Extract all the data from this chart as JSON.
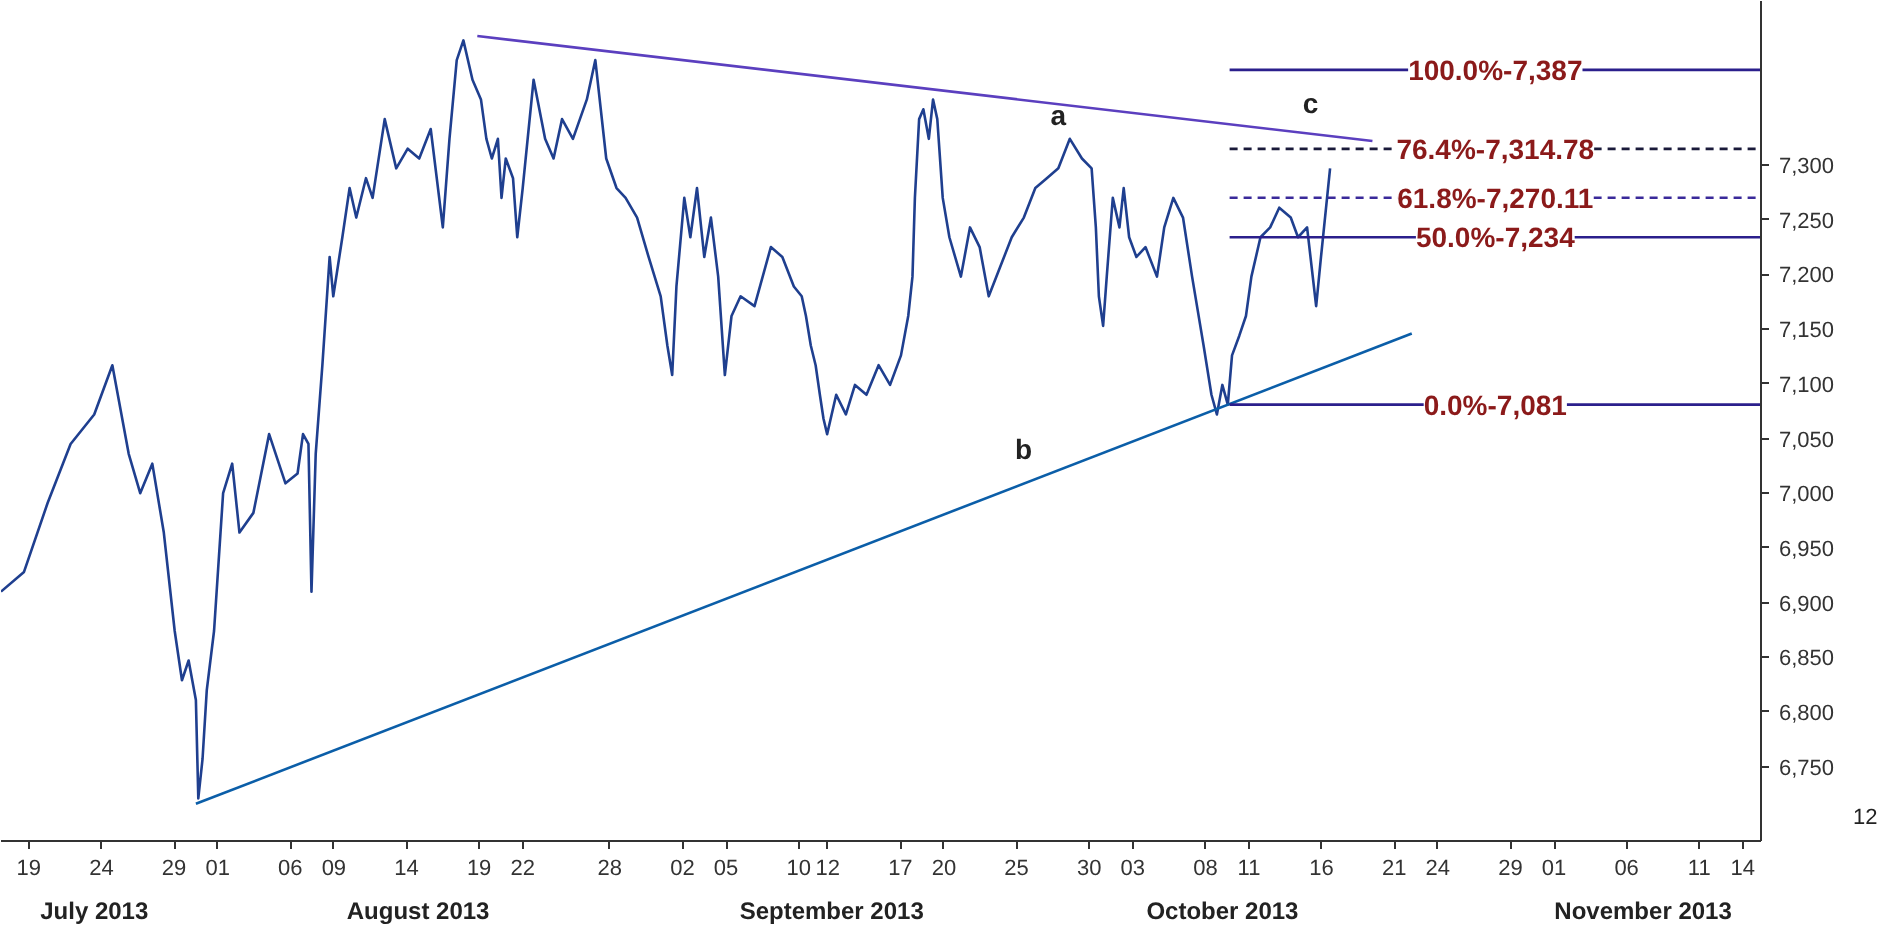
{
  "chart_data": {
    "type": "line",
    "xlim": [
      "2013-07-17T02:00",
      "2013-11-15T06:00"
    ],
    "ylim": [
      6682,
      7450
    ],
    "xticks": [
      {
        "value": "2013-07-19",
        "label": "19"
      },
      {
        "value": "2013-07-24",
        "label": "24"
      },
      {
        "value": "2013-07-29",
        "label": "29"
      },
      {
        "value": "2013-08-01",
        "label": "01"
      },
      {
        "value": "2013-08-06",
        "label": "06"
      },
      {
        "value": "2013-08-09",
        "label": "09"
      },
      {
        "value": "2013-08-14",
        "label": "14"
      },
      {
        "value": "2013-08-19",
        "label": "19"
      },
      {
        "value": "2013-08-22",
        "label": "22"
      },
      {
        "value": "2013-08-28",
        "label": "28"
      },
      {
        "value": "2013-09-02",
        "label": "02"
      },
      {
        "value": "2013-09-05",
        "label": "05"
      },
      {
        "value": "2013-09-10",
        "label": "10"
      },
      {
        "value": "2013-09-12",
        "label": "12"
      },
      {
        "value": "2013-09-17",
        "label": "17"
      },
      {
        "value": "2013-09-20",
        "label": "20"
      },
      {
        "value": "2013-09-25",
        "label": "25"
      },
      {
        "value": "2013-09-30",
        "label": "30"
      },
      {
        "value": "2013-10-03",
        "label": "03"
      },
      {
        "value": "2013-10-08",
        "label": "08"
      },
      {
        "value": "2013-10-11",
        "label": "11"
      },
      {
        "value": "2013-10-16",
        "label": "16"
      },
      {
        "value": "2013-10-21",
        "label": "21"
      },
      {
        "value": "2013-10-24",
        "label": "24"
      },
      {
        "value": "2013-10-29",
        "label": "29"
      },
      {
        "value": "2013-11-01",
        "label": "01"
      },
      {
        "value": "2013-11-06",
        "label": "06"
      },
      {
        "value": "2013-11-11",
        "label": "11"
      },
      {
        "value": "2013-11-14",
        "label": "14"
      }
    ],
    "yticks": [
      {
        "value": 6750,
        "label": "6,750"
      },
      {
        "value": 6800,
        "label": "6,800"
      },
      {
        "value": 6850,
        "label": "6,850"
      },
      {
        "value": 6900,
        "label": "6,900"
      },
      {
        "value": 6950,
        "label": "6,950"
      },
      {
        "value": 7000,
        "label": "7,000"
      },
      {
        "value": 7050,
        "label": "7,050"
      },
      {
        "value": 7100,
        "label": "7,100"
      },
      {
        "value": 7150,
        "label": "7,150"
      },
      {
        "value": 7200,
        "label": "7,200"
      },
      {
        "value": 7250,
        "label": "7,250"
      },
      {
        "value": 7300,
        "label": "7,300"
      }
    ],
    "series": [
      {
        "color": "#1f3f8f",
        "x": [
          "2013-07-17T02:00",
          "2013-07-18T16:00",
          "2013-07-20T07:00",
          "2013-07-21T21:00",
          "2013-07-23T12:00",
          "2013-07-24T18:00",
          "2013-07-25T21:00",
          "2013-07-26T16:00",
          "2013-07-27T12:00",
          "2013-07-28T07:00",
          "2013-07-29T01:00",
          "2013-07-29T13:00",
          "2013-07-30T00:00",
          "2013-07-30T12:00",
          "2013-07-30T16:00",
          "2013-07-30T23:00",
          "2013-07-31T06:00",
          "2013-07-31T18:00",
          "2013-08-01T09:00",
          "2013-08-02T00:00",
          "2013-08-02T12:00",
          "2013-08-03T11:00",
          "2013-08-04T13:00",
          "2013-08-05T16:00",
          "2013-08-06T12:00",
          "2013-08-06T21:00",
          "2013-08-07T06:00",
          "2013-08-07T11:00",
          "2013-08-07T18:00",
          "2013-08-08T05:00",
          "2013-08-08T17:00",
          "2013-08-08T23:00",
          "2013-08-09T14:00",
          "2013-08-10T02:00",
          "2013-08-10T13:00",
          "2013-08-11T05:00",
          "2013-08-11T16:00",
          "2013-08-12T12:00",
          "2013-08-13T07:00",
          "2013-08-14T02:00",
          "2013-08-14T21:00",
          "2013-08-15T16:00",
          "2013-08-16T12:00",
          "2013-08-16T23:00",
          "2013-08-17T11:00",
          "2013-08-17T22:00",
          "2013-08-18T13:00",
          "2013-08-19T03:00",
          "2013-08-19T12:00",
          "2013-08-19T21:00",
          "2013-08-20T07:00",
          "2013-08-20T13:00",
          "2013-08-20T20:00",
          "2013-08-21T08:00",
          "2013-08-21T15:00",
          "2013-08-22T00:00",
          "2013-08-22T18:00",
          "2013-08-23T13:00",
          "2013-08-24T03:00",
          "2013-08-24T17:00",
          "2013-08-25T11:00",
          "2013-08-26T10:00",
          "2013-08-27T00:00",
          "2013-08-27T18:00",
          "2013-08-28T11:00",
          "2013-08-29T02:00",
          "2013-08-29T21:00",
          "2013-08-30T16:00",
          "2013-08-31T12:00",
          "2013-08-31T23:00",
          "2013-09-01T07:00",
          "2013-09-01T14:00",
          "2013-09-02T03:00",
          "2013-09-02T13:00",
          "2013-09-03T00:00",
          "2013-09-03T12:00",
          "2013-09-03T23:00",
          "2013-09-04T11:00",
          "2013-09-04T22:00",
          "2013-09-05T09:00",
          "2013-09-06T00:00",
          "2013-09-06T23:00",
          "2013-09-08T02:00",
          "2013-09-08T21:00",
          "2013-09-09T16:00",
          "2013-09-10T05:00",
          "2013-09-10T12:00",
          "2013-09-10T20:00",
          "2013-09-11T04:00",
          "2013-09-11T11:00",
          "2013-09-11T17:00",
          "2013-09-11T23:00",
          "2013-09-12T14:00",
          "2013-09-13T06:00",
          "2013-09-13T21:00",
          "2013-09-14T16:00",
          "2013-09-15T12:00",
          "2013-09-16T07:00",
          "2013-09-17T01:00",
          "2013-09-17T13:00",
          "2013-09-17T20:00",
          "2013-09-18T00:00",
          "2013-09-18T07:00",
          "2013-09-18T14:00",
          "2013-09-18T23:00",
          "2013-09-19T06:00",
          "2013-09-19T13:00",
          "2013-09-19T22:00",
          "2013-09-20T09:00",
          "2013-09-21T04:00",
          "2013-09-21T19:00",
          "2013-09-22T11:00",
          "2013-09-23T02:00",
          "2013-09-23T21:00",
          "2013-09-24T16:00",
          "2013-09-25T12:00",
          "2013-09-26T07:00",
          "2013-09-27T02:00",
          "2013-09-27T21:00",
          "2013-09-28T16:00",
          "2013-09-29T12:00",
          "2013-09-30T04:00",
          "2013-09-30T11:00",
          "2013-09-30T16:00",
          "2013-09-30T23:00",
          "2013-10-01T05:00",
          "2013-10-01T15:00",
          "2013-10-02T02:00",
          "2013-10-02T09:00",
          "2013-10-02T18:00",
          "2013-10-03T06:00",
          "2013-10-03T21:00",
          "2013-10-04T16:00",
          "2013-10-05T04:00",
          "2013-10-05T19:00",
          "2013-10-06T11:00",
          "2013-10-07T02:00",
          "2013-10-07T21:00",
          "2013-10-08T10:00",
          "2013-10-08T19:00",
          "2013-10-09T04:00",
          "2013-10-09T13:00",
          "2013-10-09T20:00",
          "2013-10-10T08:00",
          "2013-10-10T19:00",
          "2013-10-11T04:00",
          "2013-10-11T19:00",
          "2013-10-12T11:00",
          "2013-10-13T02:00",
          "2013-10-13T21:00",
          "2013-10-14T09:00",
          "2013-10-15T00:00",
          "2013-10-15T15:00",
          "2013-10-15T23:00",
          "2013-10-16T14:00"
        ],
        "values": [
          6910,
          6928,
          6991,
          7045,
          7072,
          7117,
          7036,
          7000,
          7027,
          6964,
          6874,
          6829,
          6847,
          6811,
          6721,
          6757,
          6820,
          6874,
          7000,
          7027,
          6964,
          6982,
          7054,
          7009,
          7018,
          7054,
          7045,
          6910,
          7036,
          7117,
          7216,
          7180,
          7234,
          7279,
          7252,
          7288,
          7270,
          7342,
          7297,
          7315,
          7306,
          7333,
          7243,
          7324,
          7396,
          7414,
          7378,
          7360,
          7324,
          7306,
          7324,
          7270,
          7306,
          7288,
          7234,
          7279,
          7378,
          7324,
          7306,
          7342,
          7324,
          7360,
          7396,
          7306,
          7279,
          7270,
          7252,
          7216,
          7180,
          7135,
          7108,
          7189,
          7270,
          7234,
          7279,
          7216,
          7252,
          7198,
          7108,
          7162,
          7180,
          7171,
          7225,
          7216,
          7189,
          7180,
          7162,
          7135,
          7117,
          7090,
          7068,
          7054,
          7090,
          7072,
          7099,
          7090,
          7117,
          7099,
          7126,
          7162,
          7198,
          7270,
          7342,
          7351,
          7324,
          7360,
          7342,
          7270,
          7234,
          7198,
          7243,
          7225,
          7180,
          7207,
          7234,
          7252,
          7279,
          7288,
          7297,
          7324,
          7306,
          7297,
          7243,
          7180,
          7153,
          7198,
          7270,
          7243,
          7279,
          7234,
          7216,
          7225,
          7198,
          7243,
          7270,
          7252,
          7198,
          7135,
          7090,
          7072,
          7099,
          7081,
          7126,
          7144,
          7162,
          7198,
          7234,
          7243,
          7261,
          7252,
          7234,
          7243,
          7171,
          7216,
          7297
        ]
      },
      {
        "color": "#5b3fbf",
        "x": [
          "2013-08-18T21:00",
          "2013-10-19T12:00"
        ],
        "values": [
          7418,
          7322
        ]
      },
      {
        "color": "#0b5ea8",
        "x": [
          "2013-07-30T12:00",
          "2013-10-22T05:00"
        ],
        "values": [
          6716,
          7146
        ]
      },
      {
        "name": "100.0%-7,387",
        "color": "#2b1f8c",
        "x": [
          "2013-10-09T16:00",
          "2013-11-15T06:00"
        ],
        "values": [
          7387,
          7387
        ]
      },
      {
        "name": "76.4%-7,314.78",
        "color": "#1a1a3a",
        "line_style": "dashed",
        "x": [
          "2013-10-09T16:00",
          "2013-11-15T06:00"
        ],
        "values": [
          7314.78,
          7314.78
        ]
      },
      {
        "name": "61.8%-7,270.11",
        "color": "#3a2a9a",
        "line_style": "dashed",
        "x": [
          "2013-10-09T16:00",
          "2013-11-15T06:00"
        ],
        "values": [
          7270.11,
          7270.11
        ]
      },
      {
        "name": "50.0%-7,234",
        "color": "#2b1f8c",
        "x": [
          "2013-10-09T16:00",
          "2013-11-15T06:00"
        ],
        "values": [
          7234,
          7234
        ]
      },
      {
        "name": "0.0%-7,081",
        "color": "#2b1f8c",
        "x": [
          "2013-10-09T16:00",
          "2013-11-15T06:00"
        ],
        "values": [
          7081,
          7081
        ]
      }
    ],
    "annotations": [
      {
        "text": "a",
        "x": "2013-09-27T21:00",
        "y": 7346
      },
      "b",
      "c",
      "July 2013",
      "August 2013",
      "September 2013",
      "October 2013",
      "November 2013",
      "12"
    ]
  }
}
